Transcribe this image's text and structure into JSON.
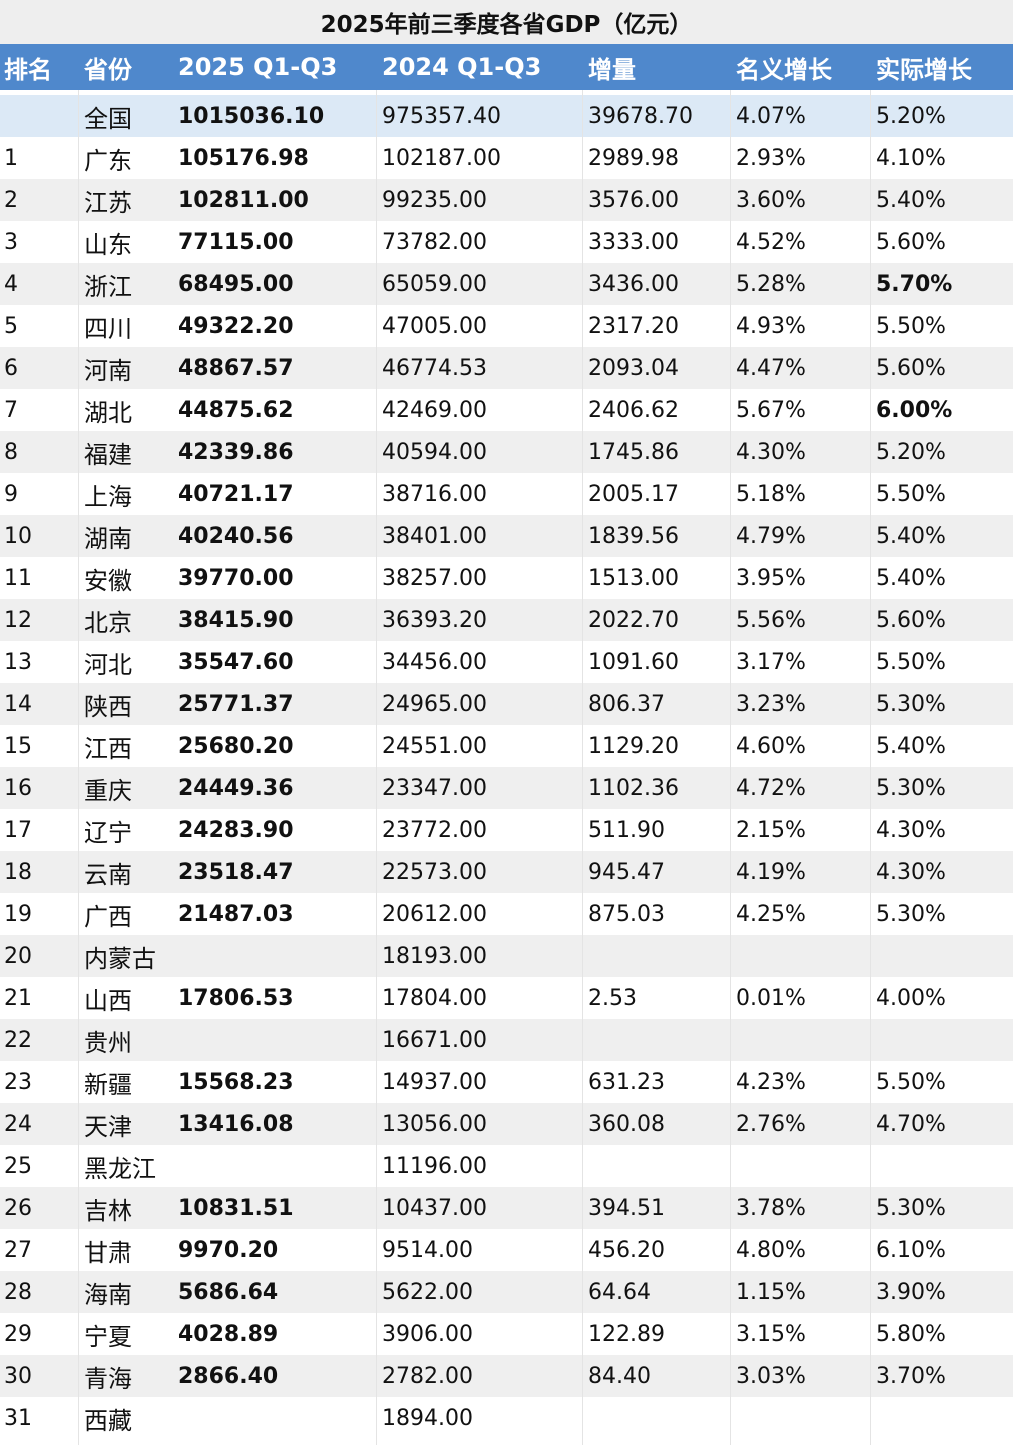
{
  "title": "2025年前三季度各省GDP（亿元）",
  "headers": [
    "排名",
    "省份",
    "2025 Q1-Q3",
    "2024 Q1-Q3",
    "增量",
    "名义增长",
    "实际增长"
  ],
  "rows": [
    {
      "rank": "",
      "province": "全国",
      "gdp2025": "1015036.10",
      "gdp2024": "975357.40",
      "increase": "39678.70",
      "nominal": "4.07%",
      "real": "5.20%"
    },
    {
      "rank": "1",
      "province": "广东",
      "gdp2025": "105176.98",
      "gdp2024": "102187.00",
      "increase": "2989.98",
      "nominal": "2.93%",
      "real": "4.10%"
    },
    {
      "rank": "2",
      "province": "江苏",
      "gdp2025": "102811.00",
      "gdp2024": "99235.00",
      "increase": "3576.00",
      "nominal": "3.60%",
      "real": "5.40%"
    },
    {
      "rank": "3",
      "province": "山东",
      "gdp2025": "77115.00",
      "gdp2024": "73782.00",
      "increase": "3333.00",
      "nominal": "4.52%",
      "real": "5.60%"
    },
    {
      "rank": "4",
      "province": "浙江",
      "gdp2025": "68495.00",
      "gdp2024": "65059.00",
      "increase": "3436.00",
      "nominal": "5.28%",
      "real": "5.70%",
      "real_bold": true
    },
    {
      "rank": "5",
      "province": "四川",
      "gdp2025": "49322.20",
      "gdp2024": "47005.00",
      "increase": "2317.20",
      "nominal": "4.93%",
      "real": "5.50%"
    },
    {
      "rank": "6",
      "province": "河南",
      "gdp2025": "48867.57",
      "gdp2024": "46774.53",
      "increase": "2093.04",
      "nominal": "4.47%",
      "real": "5.60%"
    },
    {
      "rank": "7",
      "province": "湖北",
      "gdp2025": "44875.62",
      "gdp2024": "42469.00",
      "increase": "2406.62",
      "nominal": "5.67%",
      "real": "6.00%",
      "real_bold": true
    },
    {
      "rank": "8",
      "province": "福建",
      "gdp2025": "42339.86",
      "gdp2024": "40594.00",
      "increase": "1745.86",
      "nominal": "4.30%",
      "real": "5.20%"
    },
    {
      "rank": "9",
      "province": "上海",
      "gdp2025": "40721.17",
      "gdp2024": "38716.00",
      "increase": "2005.17",
      "nominal": "5.18%",
      "real": "5.50%"
    },
    {
      "rank": "10",
      "province": "湖南",
      "gdp2025": "40240.56",
      "gdp2024": "38401.00",
      "increase": "1839.56",
      "nominal": "4.79%",
      "real": "5.40%"
    },
    {
      "rank": "11",
      "province": "安徽",
      "gdp2025": "39770.00",
      "gdp2024": "38257.00",
      "increase": "1513.00",
      "nominal": "3.95%",
      "real": "5.40%"
    },
    {
      "rank": "12",
      "province": "北京",
      "gdp2025": "38415.90",
      "gdp2024": "36393.20",
      "increase": "2022.70",
      "nominal": "5.56%",
      "real": "5.60%"
    },
    {
      "rank": "13",
      "province": "河北",
      "gdp2025": "35547.60",
      "gdp2024": "34456.00",
      "increase": "1091.60",
      "nominal": "3.17%",
      "real": "5.50%"
    },
    {
      "rank": "14",
      "province": "陕西",
      "gdp2025": "25771.37",
      "gdp2024": "24965.00",
      "increase": "806.37",
      "nominal": "3.23%",
      "real": "5.30%"
    },
    {
      "rank": "15",
      "province": "江西",
      "gdp2025": "25680.20",
      "gdp2024": "24551.00",
      "increase": "1129.20",
      "nominal": "4.60%",
      "real": "5.40%"
    },
    {
      "rank": "16",
      "province": "重庆",
      "gdp2025": "24449.36",
      "gdp2024": "23347.00",
      "increase": "1102.36",
      "nominal": "4.72%",
      "real": "5.30%"
    },
    {
      "rank": "17",
      "province": "辽宁",
      "gdp2025": "24283.90",
      "gdp2024": "23772.00",
      "increase": "511.90",
      "nominal": "2.15%",
      "real": "4.30%"
    },
    {
      "rank": "18",
      "province": "云南",
      "gdp2025": "23518.47",
      "gdp2024": "22573.00",
      "increase": "945.47",
      "nominal": "4.19%",
      "real": "4.30%"
    },
    {
      "rank": "19",
      "province": "广西",
      "gdp2025": "21487.03",
      "gdp2024": "20612.00",
      "increase": "875.03",
      "nominal": "4.25%",
      "real": "5.30%"
    },
    {
      "rank": "20",
      "province": "内蒙古",
      "gdp2025": "",
      "gdp2024": "18193.00",
      "increase": "",
      "nominal": "",
      "real": ""
    },
    {
      "rank": "21",
      "province": "山西",
      "gdp2025": "17806.53",
      "gdp2024": "17804.00",
      "increase": "2.53",
      "nominal": "0.01%",
      "real": "4.00%"
    },
    {
      "rank": "22",
      "province": "贵州",
      "gdp2025": "",
      "gdp2024": "16671.00",
      "increase": "",
      "nominal": "",
      "real": ""
    },
    {
      "rank": "23",
      "province": "新疆",
      "gdp2025": "15568.23",
      "gdp2024": "14937.00",
      "increase": "631.23",
      "nominal": "4.23%",
      "real": "5.50%"
    },
    {
      "rank": "24",
      "province": "天津",
      "gdp2025": "13416.08",
      "gdp2024": "13056.00",
      "increase": "360.08",
      "nominal": "2.76%",
      "real": "4.70%"
    },
    {
      "rank": "25",
      "province": "黑龙江",
      "gdp2025": "",
      "gdp2024": "11196.00",
      "increase": "",
      "nominal": "",
      "real": ""
    },
    {
      "rank": "26",
      "province": "吉林",
      "gdp2025": "10831.51",
      "gdp2024": "10437.00",
      "increase": "394.51",
      "nominal": "3.78%",
      "real": "5.30%"
    },
    {
      "rank": "27",
      "province": "甘肃",
      "gdp2025": "9970.20",
      "gdp2024": "9514.00",
      "increase": "456.20",
      "nominal": "4.80%",
      "real": "6.10%"
    },
    {
      "rank": "28",
      "province": "海南",
      "gdp2025": "5686.64",
      "gdp2024": "5622.00",
      "increase": "64.64",
      "nominal": "1.15%",
      "real": "3.90%"
    },
    {
      "rank": "29",
      "province": "宁夏",
      "gdp2025": "4028.89",
      "gdp2024": "3906.00",
      "increase": "122.89",
      "nominal": "3.15%",
      "real": "5.80%"
    },
    {
      "rank": "30",
      "province": "青海",
      "gdp2025": "2866.40",
      "gdp2024": "2782.00",
      "increase": "84.40",
      "nominal": "3.03%",
      "real": "3.70%"
    },
    {
      "rank": "31",
      "province": "西藏",
      "gdp2025": "",
      "gdp2024": "1894.00",
      "increase": "",
      "nominal": "",
      "real": ""
    }
  ],
  "colors": {
    "header_bg": "#4f88cc",
    "header_text": "#ffffff",
    "national_row_bg": "#dce9f6",
    "stripe_bg": "#efefef",
    "title_bg": "#eeeeee"
  }
}
